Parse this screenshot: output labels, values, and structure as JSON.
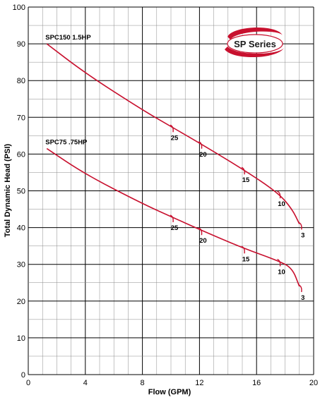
{
  "chart_data": {
    "type": "line",
    "title": "",
    "xlabel": "Flow (GPM)",
    "ylabel": "Total Dynamic Head (PSI)",
    "xlim": [
      0,
      20
    ],
    "ylim": [
      0,
      100
    ],
    "xticks": [
      0,
      4,
      8,
      12,
      16,
      20
    ],
    "yticks": [
      0,
      10,
      20,
      30,
      40,
      50,
      60,
      70,
      80,
      90,
      100
    ],
    "grid": true,
    "badge": "SP Series",
    "line_color": "#c8102e",
    "series": [
      {
        "name": "SPC150  1.5HP",
        "x": [
          1.3,
          4,
          8,
          10,
          12,
          15,
          17.5,
          18.5,
          19
        ],
        "y": [
          90,
          82,
          72,
          67.5,
          63,
          56,
          49.5,
          45,
          41
        ],
        "annotations": [
          {
            "label": "25",
            "x": 10.1,
            "y": 67.5
          },
          {
            "label": "20",
            "x": 12.1,
            "y": 63
          },
          {
            "label": "15",
            "x": 15.1,
            "y": 56
          },
          {
            "label": "10",
            "x": 17.6,
            "y": 49.5
          },
          {
            "label": "3",
            "x": 19.1,
            "y": 41
          }
        ]
      },
      {
        "name": "SPC75  .75HP",
        "x": [
          1.3,
          4,
          8,
          10,
          12,
          15,
          17.5,
          18.5,
          19
        ],
        "y": [
          61.5,
          54.5,
          46.5,
          43,
          39.5,
          34.5,
          31,
          29,
          24
        ],
        "annotations": [
          {
            "label": "25",
            "x": 10.1,
            "y": 43
          },
          {
            "label": "20",
            "x": 12.1,
            "y": 39.5
          },
          {
            "label": "15",
            "x": 15.1,
            "y": 34.5
          },
          {
            "label": "10",
            "x": 17.6,
            "y": 31
          },
          {
            "label": "3",
            "x": 19.1,
            "y": 24
          }
        ]
      }
    ]
  }
}
